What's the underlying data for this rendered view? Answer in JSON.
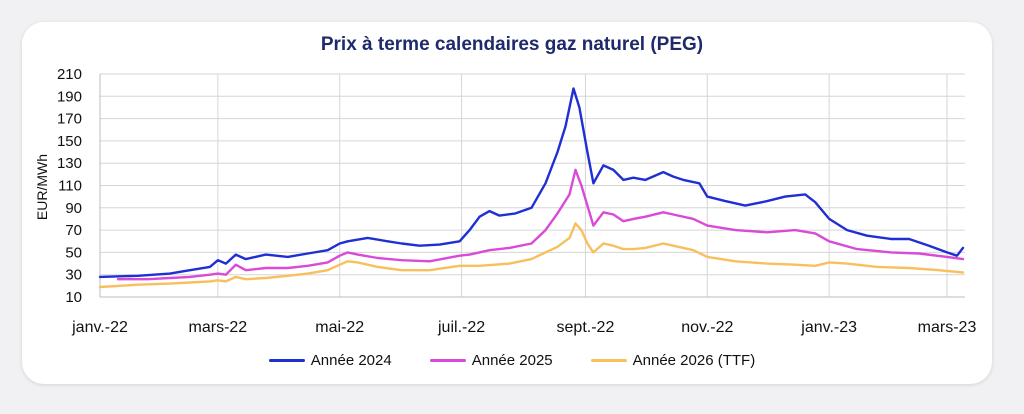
{
  "chart_data": {
    "type": "line",
    "title": "Prix à terme calendaires gaz naturel (PEG)",
    "xlabel": "",
    "ylabel": "EUR/MWh",
    "ylim": [
      10,
      210
    ],
    "yticks": [
      10,
      30,
      50,
      70,
      90,
      110,
      130,
      150,
      170,
      190,
      210
    ],
    "xlim": [
      "2022-01-01",
      "2023-03-10"
    ],
    "xticks": [
      {
        "label": "janv.-22",
        "date": "2022-01-01"
      },
      {
        "label": "mars-22",
        "date": "2022-03-01"
      },
      {
        "label": "mai-22",
        "date": "2022-05-01"
      },
      {
        "label": "juil.-22",
        "date": "2022-07-01"
      },
      {
        "label": "sept.-22",
        "date": "2022-09-01"
      },
      {
        "label": "nov.-22",
        "date": "2022-11-01"
      },
      {
        "label": "janv.-23",
        "date": "2023-01-01"
      },
      {
        "label": "mars-23",
        "date": "2023-03-01"
      }
    ],
    "grid": true,
    "legend_position": "bottom",
    "series": [
      {
        "name": "Année 2024",
        "color": "#1f2fd3",
        "points": [
          [
            "2022-01-01",
            28
          ],
          [
            "2022-01-20",
            29
          ],
          [
            "2022-02-05",
            31
          ],
          [
            "2022-02-15",
            34
          ],
          [
            "2022-02-25",
            37
          ],
          [
            "2022-03-01",
            43
          ],
          [
            "2022-03-05",
            40
          ],
          [
            "2022-03-10",
            48
          ],
          [
            "2022-03-15",
            44
          ],
          [
            "2022-03-25",
            48
          ],
          [
            "2022-04-05",
            46
          ],
          [
            "2022-04-15",
            49
          ],
          [
            "2022-04-25",
            52
          ],
          [
            "2022-05-01",
            58
          ],
          [
            "2022-05-05",
            60
          ],
          [
            "2022-05-15",
            63
          ],
          [
            "2022-05-25",
            60
          ],
          [
            "2022-06-01",
            58
          ],
          [
            "2022-06-10",
            56
          ],
          [
            "2022-06-20",
            57
          ],
          [
            "2022-06-30",
            60
          ],
          [
            "2022-07-05",
            70
          ],
          [
            "2022-07-10",
            82
          ],
          [
            "2022-07-15",
            87
          ],
          [
            "2022-07-20",
            83
          ],
          [
            "2022-07-28",
            85
          ],
          [
            "2022-08-05",
            90
          ],
          [
            "2022-08-12",
            112
          ],
          [
            "2022-08-18",
            140
          ],
          [
            "2022-08-22",
            163
          ],
          [
            "2022-08-26",
            197
          ],
          [
            "2022-08-29",
            180
          ],
          [
            "2022-09-02",
            140
          ],
          [
            "2022-09-05",
            112
          ],
          [
            "2022-09-10",
            128
          ],
          [
            "2022-09-15",
            124
          ],
          [
            "2022-09-20",
            115
          ],
          [
            "2022-09-25",
            117
          ],
          [
            "2022-10-01",
            115
          ],
          [
            "2022-10-10",
            122
          ],
          [
            "2022-10-15",
            118
          ],
          [
            "2022-10-20",
            115
          ],
          [
            "2022-10-28",
            112
          ],
          [
            "2022-11-01",
            100
          ],
          [
            "2022-11-10",
            96
          ],
          [
            "2022-11-20",
            92
          ],
          [
            "2022-12-01",
            96
          ],
          [
            "2022-12-10",
            100
          ],
          [
            "2022-12-20",
            102
          ],
          [
            "2022-12-25",
            95
          ],
          [
            "2023-01-01",
            80
          ],
          [
            "2023-01-10",
            70
          ],
          [
            "2023-01-20",
            65
          ],
          [
            "2023-02-01",
            62
          ],
          [
            "2023-02-10",
            62
          ],
          [
            "2023-02-20",
            56
          ],
          [
            "2023-03-01",
            50
          ],
          [
            "2023-03-06",
            47
          ],
          [
            "2023-03-09",
            54
          ]
        ]
      },
      {
        "name": "Année 2025",
        "color": "#d94ad8",
        "points": [
          [
            "2022-01-10",
            26
          ],
          [
            "2022-01-25",
            26
          ],
          [
            "2022-02-05",
            27
          ],
          [
            "2022-02-15",
            28
          ],
          [
            "2022-02-25",
            30
          ],
          [
            "2022-03-01",
            31
          ],
          [
            "2022-03-05",
            30
          ],
          [
            "2022-03-10",
            39
          ],
          [
            "2022-03-15",
            34
          ],
          [
            "2022-03-25",
            36
          ],
          [
            "2022-04-05",
            36
          ],
          [
            "2022-04-15",
            38
          ],
          [
            "2022-04-25",
            41
          ],
          [
            "2022-05-01",
            47
          ],
          [
            "2022-05-05",
            50
          ],
          [
            "2022-05-10",
            48
          ],
          [
            "2022-05-20",
            45
          ],
          [
            "2022-06-01",
            43
          ],
          [
            "2022-06-15",
            42
          ],
          [
            "2022-06-30",
            47
          ],
          [
            "2022-07-05",
            48
          ],
          [
            "2022-07-15",
            52
          ],
          [
            "2022-07-25",
            54
          ],
          [
            "2022-08-05",
            58
          ],
          [
            "2022-08-12",
            70
          ],
          [
            "2022-08-18",
            85
          ],
          [
            "2022-08-24",
            102
          ],
          [
            "2022-08-27",
            124
          ],
          [
            "2022-08-30",
            110
          ],
          [
            "2022-09-02",
            92
          ],
          [
            "2022-09-05",
            74
          ],
          [
            "2022-09-10",
            86
          ],
          [
            "2022-09-15",
            84
          ],
          [
            "2022-09-20",
            78
          ],
          [
            "2022-09-25",
            80
          ],
          [
            "2022-10-01",
            82
          ],
          [
            "2022-10-10",
            86
          ],
          [
            "2022-10-15",
            84
          ],
          [
            "2022-10-25",
            80
          ],
          [
            "2022-11-01",
            74
          ],
          [
            "2022-11-15",
            70
          ],
          [
            "2022-12-01",
            68
          ],
          [
            "2022-12-15",
            70
          ],
          [
            "2022-12-25",
            67
          ],
          [
            "2023-01-01",
            60
          ],
          [
            "2023-01-15",
            53
          ],
          [
            "2023-02-01",
            50
          ],
          [
            "2023-02-15",
            49
          ],
          [
            "2023-03-01",
            46
          ],
          [
            "2023-03-09",
            44
          ]
        ]
      },
      {
        "name": "Année 2026 (TTF)",
        "color": "#f7c05c",
        "points": [
          [
            "2022-01-01",
            19
          ],
          [
            "2022-01-20",
            21
          ],
          [
            "2022-02-05",
            22
          ],
          [
            "2022-02-15",
            23
          ],
          [
            "2022-02-25",
            24
          ],
          [
            "2022-03-01",
            25
          ],
          [
            "2022-03-05",
            24
          ],
          [
            "2022-03-10",
            28
          ],
          [
            "2022-03-15",
            26
          ],
          [
            "2022-03-25",
            27
          ],
          [
            "2022-04-05",
            29
          ],
          [
            "2022-04-15",
            31
          ],
          [
            "2022-04-25",
            34
          ],
          [
            "2022-05-01",
            39
          ],
          [
            "2022-05-05",
            42
          ],
          [
            "2022-05-10",
            41
          ],
          [
            "2022-05-20",
            37
          ],
          [
            "2022-06-01",
            34
          ],
          [
            "2022-06-15",
            34
          ],
          [
            "2022-06-30",
            38
          ],
          [
            "2022-07-10",
            38
          ],
          [
            "2022-07-25",
            40
          ],
          [
            "2022-08-05",
            44
          ],
          [
            "2022-08-12",
            50
          ],
          [
            "2022-08-18",
            55
          ],
          [
            "2022-08-24",
            63
          ],
          [
            "2022-08-27",
            76
          ],
          [
            "2022-08-30",
            70
          ],
          [
            "2022-09-02",
            58
          ],
          [
            "2022-09-05",
            50
          ],
          [
            "2022-09-10",
            58
          ],
          [
            "2022-09-15",
            56
          ],
          [
            "2022-09-20",
            53
          ],
          [
            "2022-09-25",
            53
          ],
          [
            "2022-10-01",
            54
          ],
          [
            "2022-10-10",
            58
          ],
          [
            "2022-10-15",
            56
          ],
          [
            "2022-10-25",
            52
          ],
          [
            "2022-11-01",
            46
          ],
          [
            "2022-11-15",
            42
          ],
          [
            "2022-12-01",
            40
          ],
          [
            "2022-12-15",
            39
          ],
          [
            "2022-12-25",
            38
          ],
          [
            "2023-01-01",
            41
          ],
          [
            "2023-01-10",
            40
          ],
          [
            "2023-01-25",
            37
          ],
          [
            "2023-02-10",
            36
          ],
          [
            "2023-02-25",
            34
          ],
          [
            "2023-03-09",
            32
          ]
        ]
      }
    ]
  }
}
